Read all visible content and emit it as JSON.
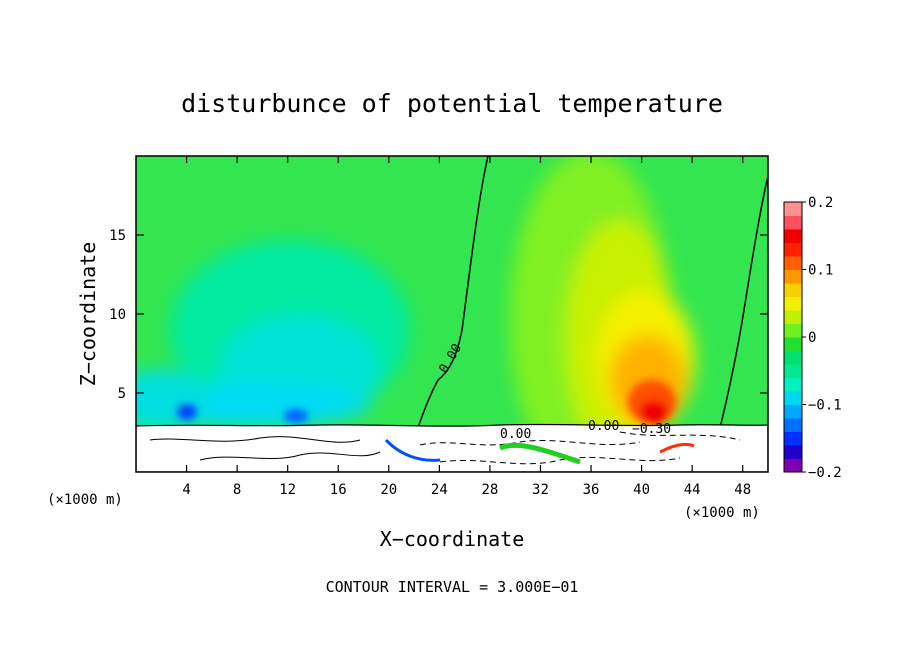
{
  "chart_data": {
    "type": "heatmap",
    "title": "disturbunce of potential temperature",
    "xlabel": "X−coordinate",
    "ylabel": "Z−coordinate",
    "x_unit": "(×1000 m)",
    "x_unit_right": "(×1000 m)",
    "xlim": [
      0,
      50
    ],
    "ylim": [
      0,
      20
    ],
    "x_ticks": [
      4,
      8,
      12,
      16,
      20,
      24,
      28,
      32,
      36,
      40,
      44,
      48
    ],
    "x_tick_labels": [
      "4",
      "8",
      "12",
      "16",
      "20",
      "24",
      "28",
      "32",
      "36",
      "40",
      "44",
      "48"
    ],
    "y_ticks": [
      5,
      10,
      15
    ],
    "y_tick_labels": [
      "5",
      "10",
      "15"
    ],
    "colorbar": {
      "min": -0.2,
      "max": 0.2,
      "ticks": [
        0.2,
        0.1,
        0,
        -0.1,
        -0.2
      ],
      "tick_labels": [
        "0.2",
        "0.1",
        "0",
        "−0.1",
        "−0.2"
      ],
      "colors": [
        "#8000b0",
        "#2200cc",
        "#0030ff",
        "#0070ff",
        "#00a8ff",
        "#00d8f0",
        "#00f0c0",
        "#00e890",
        "#00e070",
        "#20e030",
        "#70f020",
        "#c0f000",
        "#f0f000",
        "#f8d000",
        "#ff9800",
        "#ff6000",
        "#ff2000",
        "#f00000",
        "#ff5060",
        "#ff9090"
      ]
    },
    "contour_labels": [
      "0.00",
      "0.00",
      "0.00",
      "−0.30"
    ],
    "footer": "CONTOUR INTERVAL = 3.000E−01"
  }
}
